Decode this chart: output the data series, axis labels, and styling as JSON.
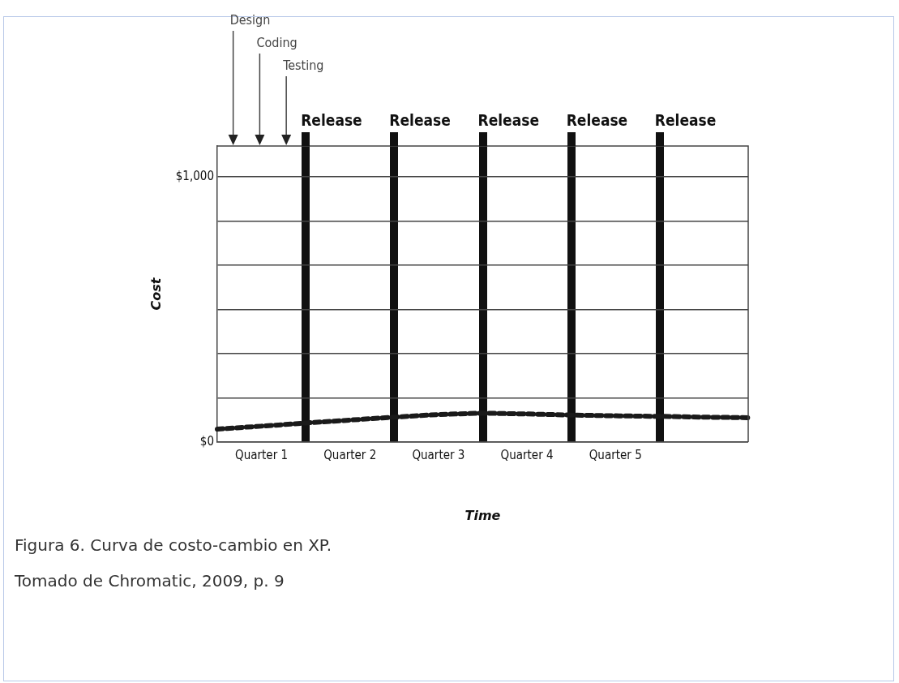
{
  "chart_data": {
    "type": "line",
    "categories": [
      null,
      "Quarter 1",
      null,
      "Quarter 2",
      null,
      "Quarter 3",
      null,
      "Quarter 4",
      null,
      "Quarter 5",
      null,
      null,
      null
    ],
    "series": [
      {
        "color": "#1a1a1a",
        "values": [
          49,
          60,
          72,
          83,
          94,
          104,
          109,
          106,
          102,
          99,
          97,
          94,
          92
        ]
      }
    ],
    "ylim": [
      0,
      1116
    ],
    "yticks": [
      {
        "value": 0,
        "label": "$0"
      },
      {
        "value": 166.7,
        "label": null
      },
      {
        "value": 333.3,
        "label": null
      },
      {
        "value": 500,
        "label": null
      },
      {
        "value": 666.7,
        "label": null
      },
      {
        "value": 833.3,
        "label": null
      },
      {
        "value": 1000,
        "label": "$1,000"
      }
    ],
    "xlabel": "Time",
    "ylabel": "Cost",
    "grid": true,
    "legend": false,
    "marker": "none",
    "line_style": "dashed",
    "annotations": [
      "Design",
      "Coding",
      "Testing",
      "Release",
      "Release",
      "Release",
      "Release",
      "Release",
      "Figura 6. Curva de costo-cambio en XP.",
      "Tomado de Chromatic, 2009, p. 9"
    ]
  }
}
